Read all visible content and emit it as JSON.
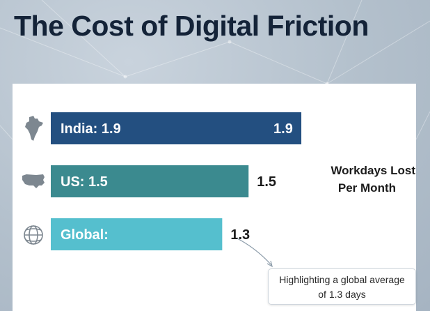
{
  "title": "The Cost of Digital Friction",
  "chart_data": {
    "type": "bar",
    "orientation": "horizontal",
    "categories": [
      "India",
      "US",
      "Global"
    ],
    "bar_labels": [
      "India: 1.9",
      "US: 1.5",
      "Global:"
    ],
    "values": [
      1.9,
      1.5,
      1.3
    ],
    "value_labels": [
      "1.9",
      "1.5",
      "1.3"
    ],
    "colors": [
      "#234f80",
      "#3b8a8f",
      "#55bfce"
    ],
    "icons": [
      "india-map-icon",
      "us-map-icon",
      "globe-icon"
    ],
    "xlim": [
      0,
      2.2
    ],
    "series_label": [
      "Workdays Lost",
      "Per Month"
    ],
    "annotation": [
      "Highlighting a global average",
      "of 1.3 days"
    ]
  }
}
